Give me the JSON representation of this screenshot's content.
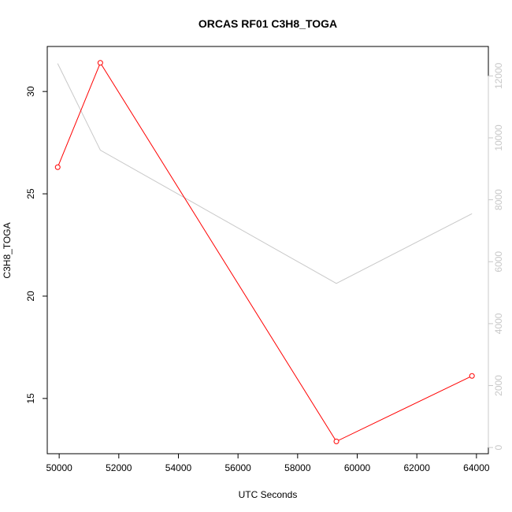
{
  "chart_data": {
    "type": "line",
    "title": "ORCAS RF01 C3H8_TOGA",
    "xlabel": "UTC Seconds",
    "ylabel": "C3H8_TOGA",
    "xlim": [
      49600,
      64400
    ],
    "ylim_left": [
      12.3,
      32.2
    ],
    "ylim_right": [
      -200,
      12950
    ],
    "x_ticks": [
      50000,
      52000,
      54000,
      56000,
      58000,
      60000,
      62000,
      64000
    ],
    "y_ticks_left": [
      15,
      20,
      25,
      30
    ],
    "y_ticks_right": [
      0,
      2000,
      4000,
      6000,
      8000,
      10000,
      12000
    ],
    "grid": false,
    "series": [
      {
        "axis": "left",
        "color": "#ff0000",
        "markers": "open-circle",
        "x": [
          49950,
          51380,
          59300,
          63850
        ],
        "y": [
          26.3,
          31.4,
          12.9,
          16.1
        ]
      },
      {
        "axis": "right",
        "color": "#c8c8c8",
        "markers": "none",
        "x": [
          49950,
          51380,
          59300,
          63850
        ],
        "y": [
          12400,
          9600,
          5300,
          7550
        ]
      }
    ]
  }
}
